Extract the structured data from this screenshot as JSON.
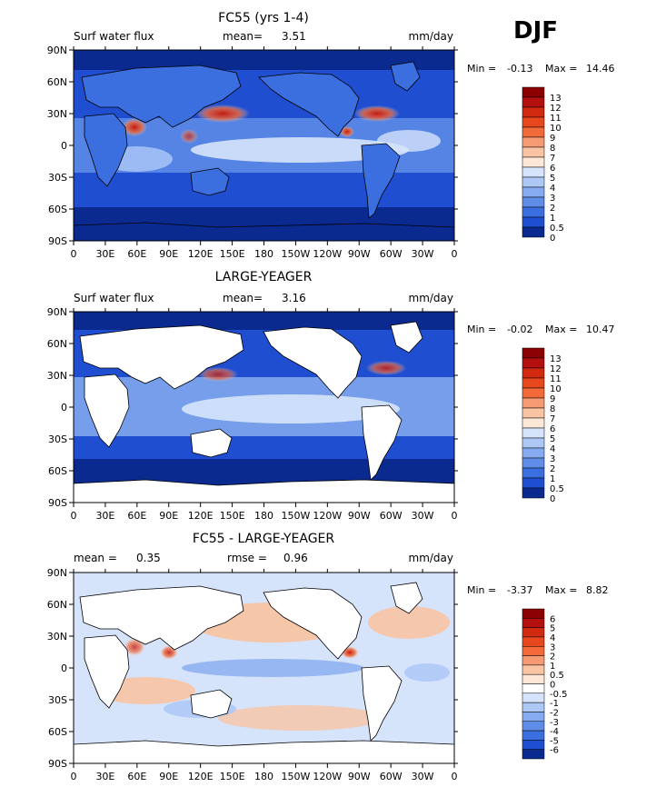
{
  "season": "DJF",
  "colors": {
    "ocean_dark": "#0a2a8f",
    "ocean_mid": "#2f66d9",
    "land_bg": "#ffffff",
    "frame": "#000000"
  },
  "chart_data": [
    {
      "type": "heatmap",
      "title": "FC55 (yrs 1-4)",
      "left_label": "Surf water flux",
      "mean_label": "mean=",
      "mean_value": "3.51",
      "units": "mm/day",
      "min_label": "Min =",
      "min_value": "-0.13",
      "max_label": "Max =",
      "max_value": "14.46",
      "xticks": [
        "0",
        "30E",
        "60E",
        "90E",
        "120E",
        "150E",
        "180",
        "150W",
        "120W",
        "90W",
        "60W",
        "30W",
        "0"
      ],
      "yticks": [
        "90N",
        "60N",
        "30N",
        "0",
        "30S",
        "60S",
        "90S"
      ],
      "colorbar": {
        "labels": [
          "13",
          "12",
          "11",
          "10",
          "9",
          "8",
          "7",
          "6",
          "5",
          "4",
          "3",
          "2",
          "1",
          "0.5",
          "0"
        ],
        "colors": [
          "#8b0000",
          "#b41010",
          "#d22a10",
          "#e8481e",
          "#f2693a",
          "#f59a72",
          "#f8c4a4",
          "#fde8d8",
          "#d6e4fb",
          "#aec8f6",
          "#86abf0",
          "#5f8de8",
          "#3b6fe0",
          "#1f4fd0",
          "#0a2a8f"
        ]
      }
    },
    {
      "type": "heatmap",
      "title": "LARGE-YEAGER",
      "left_label": "Surf water flux",
      "mean_label": "mean=",
      "mean_value": "3.16",
      "units": "mm/day",
      "min_label": "Min =",
      "min_value": "-0.02",
      "max_label": "Max =",
      "max_value": "10.47",
      "xticks": [
        "0",
        "30E",
        "60E",
        "90E",
        "120E",
        "150E",
        "180",
        "150W",
        "120W",
        "90W",
        "60W",
        "30W",
        "0"
      ],
      "yticks": [
        "90N",
        "60N",
        "30N",
        "0",
        "30S",
        "60S",
        "90S"
      ],
      "colorbar": {
        "labels": [
          "13",
          "12",
          "11",
          "10",
          "9",
          "8",
          "7",
          "6",
          "5",
          "4",
          "3",
          "2",
          "1",
          "0.5",
          "0"
        ],
        "colors": [
          "#8b0000",
          "#b41010",
          "#d22a10",
          "#e8481e",
          "#f2693a",
          "#f59a72",
          "#f8c4a4",
          "#fde8d8",
          "#d6e4fb",
          "#aec8f6",
          "#86abf0",
          "#5f8de8",
          "#3b6fe0",
          "#1f4fd0",
          "#0a2a8f"
        ]
      }
    },
    {
      "type": "heatmap",
      "title": "FC55 - LARGE-YEAGER",
      "mean_label": "mean =",
      "mean_value": "0.35",
      "rmse_label": "rmse =",
      "rmse_value": "0.96",
      "units": "mm/day",
      "min_label": "Min =",
      "min_value": "-3.37",
      "max_label": "Max =",
      "max_value": "8.82",
      "xticks": [
        "0",
        "30E",
        "60E",
        "90E",
        "120E",
        "150E",
        "180",
        "150W",
        "120W",
        "90W",
        "60W",
        "30W",
        "0"
      ],
      "yticks": [
        "90N",
        "60N",
        "30N",
        "0",
        "30S",
        "60S",
        "90S"
      ],
      "colorbar": {
        "labels": [
          "6",
          "5",
          "4",
          "3",
          "2",
          "1",
          "0.5",
          "0",
          "-0.5",
          "-1",
          "-2",
          "-3",
          "-4",
          "-5",
          "-6"
        ],
        "colors": [
          "#8b0000",
          "#b41010",
          "#d22a10",
          "#e8481e",
          "#f2693a",
          "#f59a72",
          "#f8c4a4",
          "#fde8d8",
          "#ffffff",
          "#d6e4fb",
          "#aec8f6",
          "#86abf0",
          "#5f8de8",
          "#3b6fe0",
          "#1f4fd0",
          "#0a2a8f"
        ]
      }
    }
  ]
}
